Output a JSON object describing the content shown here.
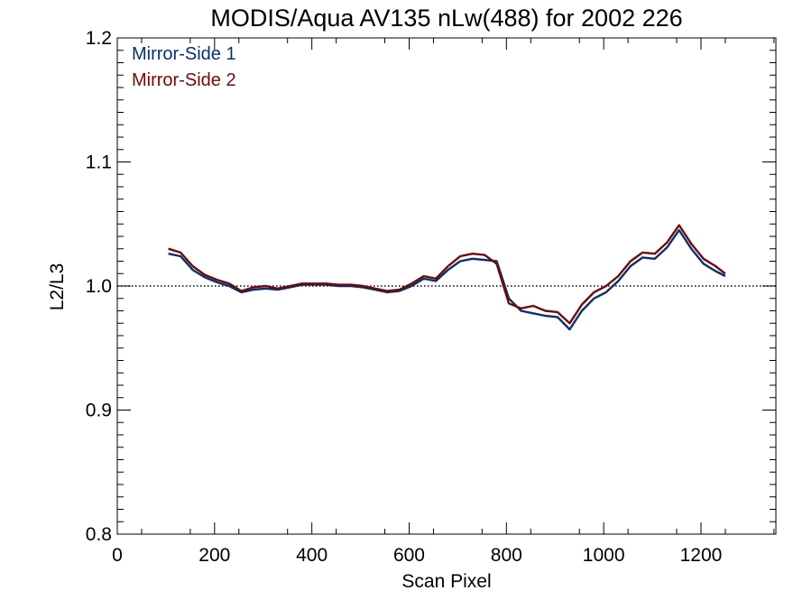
{
  "chart_data": {
    "type": "line",
    "title": "MODIS/Aqua AV135 nLw(488) for 2002 226",
    "xlabel": "Scan Pixel",
    "ylabel": "L2/L3",
    "xlim": [
      0,
      1354
    ],
    "ylim": [
      0.8,
      1.2
    ],
    "xticks": [
      0,
      200,
      400,
      600,
      800,
      1000,
      1200
    ],
    "xtick_labels": [
      "0",
      "200",
      "400",
      "600",
      "800",
      "1000",
      "1200"
    ],
    "yticks": [
      0.8,
      0.9,
      1.0,
      1.1,
      1.2
    ],
    "ytick_labels": [
      "0.8",
      "0.9",
      "1.0",
      "1.1",
      "1.2"
    ],
    "reference_line": {
      "y": 1.0,
      "style": "dotted",
      "color": "#000000"
    },
    "legend": {
      "placement": "top-left",
      "entries": [
        {
          "label": "Mirror-Side 1",
          "color": "#0a2f6e"
        },
        {
          "label": "Mirror-Side 2",
          "color": "#6e0a0a"
        }
      ]
    },
    "grid": false,
    "x": [
      105,
      130,
      155,
      180,
      205,
      230,
      255,
      280,
      305,
      330,
      355,
      380,
      405,
      430,
      455,
      480,
      505,
      530,
      555,
      580,
      605,
      630,
      655,
      680,
      705,
      730,
      755,
      780,
      805,
      830,
      855,
      880,
      905,
      930,
      955,
      980,
      1005,
      1030,
      1055,
      1080,
      1105,
      1130,
      1155,
      1180,
      1205,
      1230,
      1250
    ],
    "series": [
      {
        "color": "#0a2f6e",
        "values": [
          1.026,
          1.024,
          1.013,
          1.007,
          1.003,
          1.0,
          0.995,
          0.997,
          0.998,
          0.997,
          0.999,
          1.001,
          1.001,
          1.001,
          1.0,
          1.0,
          0.999,
          0.997,
          0.995,
          0.996,
          1.0,
          1.006,
          1.004,
          1.013,
          1.02,
          1.022,
          1.021,
          1.02,
          0.99,
          0.98,
          0.978,
          0.976,
          0.975,
          0.965,
          0.98,
          0.99,
          0.995,
          1.004,
          1.016,
          1.023,
          1.022,
          1.031,
          1.045,
          1.03,
          1.018,
          1.012,
          1.008
        ]
      },
      {
        "color": "#6e0a0a",
        "values": [
          1.03,
          1.027,
          1.016,
          1.009,
          1.005,
          1.002,
          0.996,
          0.999,
          1.0,
          0.998,
          1.0,
          1.002,
          1.002,
          1.002,
          1.001,
          1.001,
          1.0,
          0.998,
          0.996,
          0.997,
          1.002,
          1.008,
          1.006,
          1.016,
          1.024,
          1.026,
          1.025,
          1.018,
          0.986,
          0.982,
          0.984,
          0.98,
          0.979,
          0.97,
          0.985,
          0.995,
          1.0,
          1.008,
          1.02,
          1.027,
          1.026,
          1.035,
          1.049,
          1.034,
          1.022,
          1.016,
          1.01
        ]
      }
    ]
  }
}
